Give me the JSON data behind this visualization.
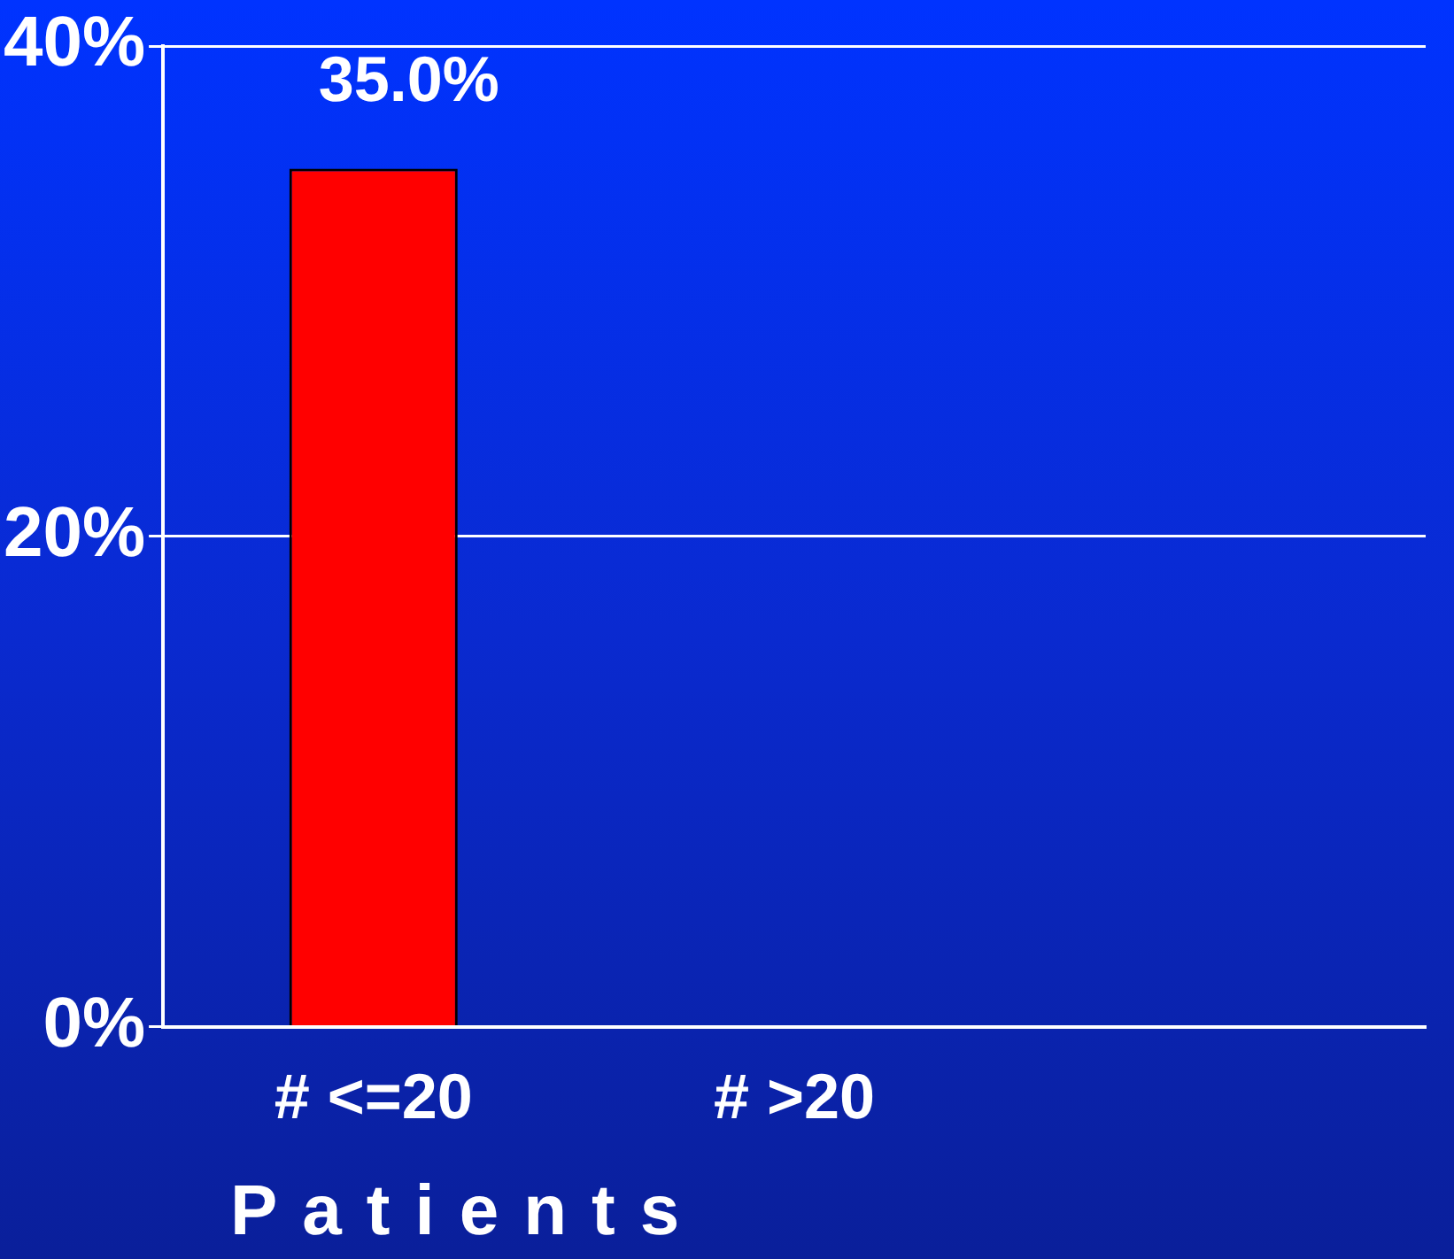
{
  "chart_data": {
    "type": "bar",
    "xlabel": "Patients",
    "categories": [
      "# <=20",
      "# >20",
      null
    ],
    "values": [
      35.0,
      0,
      null
    ],
    "value_labels": [
      "35.0%",
      null,
      null
    ],
    "color": "#ff0000",
    "ylim": [
      0,
      40
    ],
    "yticks": [
      {
        "value": 0,
        "label": "0%"
      },
      {
        "value": 20,
        "label": "20%"
      },
      {
        "value": 40,
        "label": "40%"
      }
    ],
    "grid": "y",
    "legend": false
  }
}
